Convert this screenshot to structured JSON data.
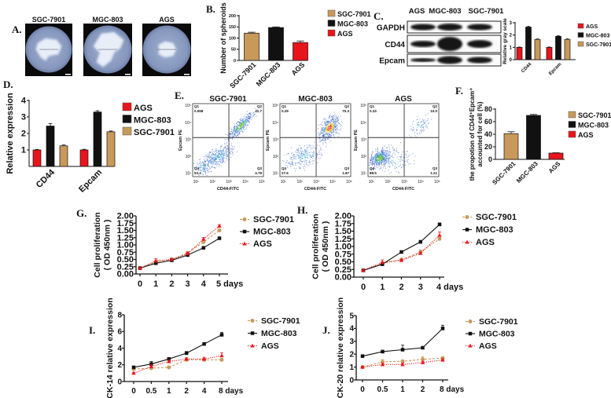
{
  "colors": {
    "SGC-7901": "#C8995A",
    "MGC-803": "#111111",
    "AGS": "#E8141C"
  },
  "panelA": {
    "label": "A.",
    "images": [
      {
        "title": "SGC-7901"
      },
      {
        "title": "MGC-803"
      },
      {
        "title": "AGS"
      }
    ]
  },
  "panelC_blot": {
    "label": "C.",
    "lanes": [
      "AGS",
      "MGC-803",
      "SGC-7901"
    ],
    "rows": [
      "GAPDH",
      "CD44",
      "Epcam"
    ]
  },
  "panelE": {
    "label": "E.",
    "x_label": "CD44-FITC",
    "y_label": "Epcam PE",
    "ticks": [
      "10¹",
      "10²",
      "10³",
      "10⁴",
      "10⁵"
    ],
    "plots": [
      {
        "title": "SGC-7901",
        "quadrants": [
          {
            "name": "Q1",
            "value": "0.058"
          },
          {
            "name": "Q2",
            "value": "41.7"
          },
          {
            "name": "Q3",
            "value": "4.78"
          },
          {
            "name": "Q4",
            "value": "53.4"
          }
        ]
      },
      {
        "title": "MGC-803",
        "quadrants": [
          {
            "name": "Q1",
            "value": "0.29"
          },
          {
            "name": "Q2",
            "value": "70.3"
          },
          {
            "name": "Q3",
            "value": "1.87"
          },
          {
            "name": "Q4",
            "value": "27.6"
          }
        ]
      },
      {
        "title": "AGS",
        "quadrants": [
          {
            "name": "Q1",
            "value": "0.33"
          },
          {
            "name": "Q2",
            "value": "10.0"
          },
          {
            "name": "Q3",
            "value": "1.21"
          },
          {
            "name": "Q4",
            "value": "88.5"
          }
        ]
      }
    ]
  },
  "chart_data": [
    {
      "id": "panel-b",
      "label": "B.",
      "type": "bar",
      "categories": [
        "SGC-7901",
        "MGC-803",
        "AGS"
      ],
      "values": [
        122,
        147,
        80
      ],
      "errors": [
        4,
        3,
        7
      ],
      "ylabel": "Number of spheroids",
      "ylim": [
        0,
        200
      ],
      "yticks": [
        "0",
        "50",
        "100",
        "150",
        "200"
      ],
      "legend": [
        "SGC-7901",
        "MGC-803",
        "AGS"
      ],
      "legend_position": "right",
      "grid": false
    },
    {
      "id": "panel-c-bar",
      "type": "bar",
      "categories": [
        "CD44",
        "Epcam"
      ],
      "series": [
        {
          "name": "AGS",
          "values": [
            1.0,
            1.0
          ],
          "errors": [
            0.03,
            0.03
          ]
        },
        {
          "name": "MGC-803",
          "values": [
            2.65,
            1.9
          ],
          "errors": [
            0.06,
            0.05
          ]
        },
        {
          "name": "SGC-7901",
          "values": [
            1.65,
            1.65
          ],
          "errors": [
            0.04,
            0.04
          ]
        }
      ],
      "ylabel": "Relative gray scale",
      "ylim": [
        0,
        3
      ],
      "yticks": [
        "0",
        "1",
        "2",
        "3"
      ],
      "legend_position": "right",
      "grid": false
    },
    {
      "id": "panel-d",
      "label": "D.",
      "type": "bar",
      "categories": [
        "CD44",
        "Epcam"
      ],
      "series": [
        {
          "name": "AGS",
          "values": [
            1.0,
            1.0
          ],
          "errors": [
            0.03,
            0.04
          ]
        },
        {
          "name": "MGC-803",
          "values": [
            2.45,
            3.3
          ],
          "errors": [
            0.15,
            0.08
          ]
        },
        {
          "name": "SGC-7901",
          "values": [
            1.25,
            2.1
          ],
          "errors": [
            0.05,
            0.05
          ]
        }
      ],
      "ylabel": "Relative expression",
      "ylim": [
        0,
        4
      ],
      "yticks": [
        "1",
        "2",
        "3",
        "4"
      ],
      "legend_position": "right",
      "grid": false
    },
    {
      "id": "panel-f",
      "label": "F.",
      "type": "bar",
      "categories": [
        "SGC-7901",
        "MGC-803",
        "AGS"
      ],
      "values": [
        41,
        70,
        10
      ],
      "errors": [
        3,
        1.5,
        0.5
      ],
      "ylabel": "the propotion of CD44⁺Epcam⁺",
      "ylabel2": "accounted for cell (%)",
      "ylim": [
        0,
        80
      ],
      "yticks": [
        "0",
        "20",
        "40",
        "60",
        "80"
      ],
      "legend": [
        "SGC-7901",
        "MGC-803",
        "AGS"
      ],
      "legend_position": "right",
      "grid": false
    },
    {
      "id": "panel-g",
      "label": "G.",
      "type": "line",
      "x": [
        0,
        1,
        2,
        3,
        4,
        5
      ],
      "xticks": [
        "0",
        "1",
        "2",
        "3",
        "4",
        "5 days"
      ],
      "series": [
        {
          "name": "SGC-7901",
          "values": [
            0.2,
            0.42,
            0.5,
            0.72,
            1.1,
            1.5
          ],
          "errors": [
            0.02,
            0.05,
            0.04,
            0.06,
            0.05,
            0.05
          ]
        },
        {
          "name": "MGC-803",
          "values": [
            0.2,
            0.37,
            0.47,
            0.65,
            0.9,
            1.23
          ],
          "errors": [
            0.02,
            0.02,
            0.02,
            0.02,
            0.02,
            0.03
          ]
        },
        {
          "name": "AGS",
          "values": [
            0.2,
            0.45,
            0.5,
            0.7,
            1.2,
            1.65
          ],
          "errors": [
            0.02,
            0.08,
            0.04,
            0.05,
            0.06,
            0.05
          ]
        }
      ],
      "ylabel": "Cell proliferation",
      "ylabel2": "( OD 450nm )",
      "ylim": [
        0,
        2
      ],
      "yticks": [
        "0.00",
        "0.25",
        "0.50",
        "0.75",
        "1.00",
        "1.25",
        "1.50",
        "1.75",
        "2.00"
      ],
      "legend_position": "right",
      "grid": false
    },
    {
      "id": "panel-h",
      "label": "H.",
      "type": "line",
      "x": [
        0,
        1,
        2,
        3,
        4
      ],
      "xticks": [
        "0",
        "1",
        "2",
        "3",
        "4 days"
      ],
      "series": [
        {
          "name": "SGC-7901",
          "values": [
            0.22,
            0.45,
            0.57,
            0.82,
            1.25
          ],
          "errors": [
            0.03,
            0.05,
            0.04,
            0.07,
            0.05
          ]
        },
        {
          "name": "MGC-803",
          "values": [
            0.22,
            0.42,
            0.82,
            1.15,
            1.72
          ],
          "errors": [
            0.03,
            0.03,
            0.04,
            0.05,
            0.05
          ]
        },
        {
          "name": "AGS",
          "values": [
            0.22,
            0.48,
            0.55,
            0.78,
            1.37
          ],
          "errors": [
            0.03,
            0.08,
            0.04,
            0.04,
            0.1
          ]
        }
      ],
      "ylabel": "Cell proliferation",
      "ylabel2": "( OD 450nm )",
      "ylim": [
        0,
        2
      ],
      "yticks": [
        "0.00",
        "0.25",
        "0.50",
        "0.75",
        "1.00",
        "1.25",
        "1.50",
        "1.75",
        "2.00"
      ],
      "legend_position": "right",
      "grid": false
    },
    {
      "id": "panel-i",
      "label": "I.",
      "type": "line",
      "x": [
        0,
        0.5,
        1,
        2,
        4,
        8
      ],
      "xticks": [
        "0",
        "0.5",
        "1",
        "2",
        "4",
        "8 days"
      ],
      "series": [
        {
          "name": "SGC-7901",
          "values": [
            1.5,
            1.6,
            1.7,
            2.6,
            2.6,
            2.6
          ],
          "errors": [
            0.1,
            0.15,
            0.1,
            0.15,
            0.2,
            0.15
          ]
        },
        {
          "name": "MGC-803",
          "values": [
            1.7,
            2.1,
            2.7,
            3.4,
            4.5,
            5.6
          ],
          "errors": [
            0.1,
            0.3,
            0.1,
            0.2,
            0.1,
            0.3
          ]
        },
        {
          "name": "AGS",
          "values": [
            1.0,
            1.8,
            2.4,
            2.7,
            2.7,
            3.1
          ],
          "errors": [
            0.1,
            0.2,
            0.2,
            0.15,
            0.2,
            0.35
          ]
        }
      ],
      "ylabel": "CK-14 relative expression",
      "ylim": [
        0,
        8
      ],
      "yticks": [
        "0",
        "2",
        "4",
        "6",
        "8"
      ],
      "legend_position": "right",
      "grid": false
    },
    {
      "id": "panel-j",
      "label": "J.",
      "type": "line",
      "x": [
        0,
        0.5,
        1,
        2,
        8
      ],
      "xticks": [
        "0",
        "0.5",
        "1",
        "2",
        "8 days"
      ],
      "series": [
        {
          "name": "SGC-7901",
          "values": [
            1.0,
            1.4,
            1.45,
            1.6,
            1.7
          ],
          "errors": [
            0.05,
            0.2,
            0.1,
            0.2,
            0.1
          ]
        },
        {
          "name": "MGC-803",
          "values": [
            1.85,
            2.2,
            2.35,
            2.5,
            4.0
          ],
          "errors": [
            0.05,
            0.1,
            0.35,
            0.05,
            0.25
          ]
        },
        {
          "name": "AGS",
          "values": [
            1.0,
            1.2,
            1.2,
            1.35,
            1.55
          ],
          "errors": [
            0.05,
            0.1,
            0.1,
            0.1,
            0.1
          ]
        }
      ],
      "ylabel": "CK-20 relative expression",
      "ylim": [
        0,
        5
      ],
      "yticks": [
        "0",
        "1",
        "2",
        "3",
        "4",
        "5"
      ],
      "legend_position": "right",
      "grid": false
    }
  ]
}
